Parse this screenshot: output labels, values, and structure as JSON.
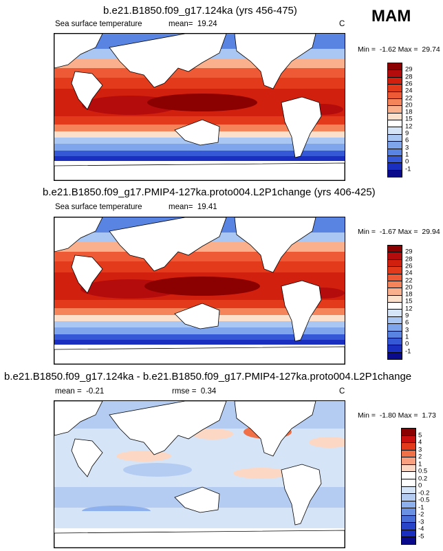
{
  "season": "MAM",
  "panels": [
    {
      "title": "b.e21.B1850.f09_g17.124ka (yrs 456-475)",
      "left_label": "Sea surface temperature",
      "stat_label": "mean=",
      "stat_value": "19.24",
      "units": "C",
      "min_label": "Min =",
      "min_value": "-1.62",
      "max_label": "Max =",
      "max_value": "29.74",
      "colorbar_labels": [
        "29",
        "28",
        "26",
        "24",
        "22",
        "20",
        "18",
        "15",
        "12",
        "9",
        "6",
        "3",
        "1",
        "0",
        "-1"
      ]
    },
    {
      "title": "b.e21.B1850.f09_g17.PMIP4-127ka.proto004.L2P1change (yrs 406-425)",
      "left_label": "Sea surface temperature",
      "stat_label": "mean=",
      "stat_value": "19.41",
      "units": "",
      "min_label": "Min =",
      "min_value": "-1.67",
      "max_label": "Max =",
      "max_value": "29.94",
      "colorbar_labels": [
        "29",
        "28",
        "26",
        "24",
        "22",
        "20",
        "18",
        "15",
        "12",
        "9",
        "6",
        "3",
        "1",
        "0",
        "-1"
      ]
    },
    {
      "title": "b.e21.B1850.f09_g17.124ka - b.e21.B1850.f09_g17.PMIP4-127ka.proto004.L2P1change",
      "left_label": "mean =",
      "left_value": "-0.21",
      "stat_label": "rmse =",
      "stat_value": "0.34",
      "units": "C",
      "min_label": "Min =",
      "min_value": "-1.80",
      "max_label": "Max =",
      "max_value": "1.73",
      "colorbar_labels": [
        "5",
        "4",
        "3",
        "2",
        "1",
        "0.5",
        "0.2",
        "0",
        "-0.2",
        "-0.5",
        "-1",
        "-2",
        "-3",
        "-4",
        "-5"
      ]
    }
  ],
  "colors": {
    "abs_scale": [
      "#8b0000",
      "#b40c0c",
      "#d2200e",
      "#e33a1c",
      "#ee5a35",
      "#f6845a",
      "#fab08c",
      "#fce0cc",
      "#ffffff",
      "#d6e4f8",
      "#aac6f2",
      "#7fa6ec",
      "#5a84e2",
      "#3558d6",
      "#1a2ebf",
      "#0a0a8c"
    ],
    "diff_scale": [
      "#8b0000",
      "#c8100e",
      "#e33a1c",
      "#f07048",
      "#f8a080",
      "#fcd8c4",
      "#ffffff",
      "#ffffff",
      "#d6e4f8",
      "#b4ccf2",
      "#8eb0ec",
      "#6a90e4",
      "#4a6ed8",
      "#2844c8",
      "#0a0a8c"
    ]
  }
}
